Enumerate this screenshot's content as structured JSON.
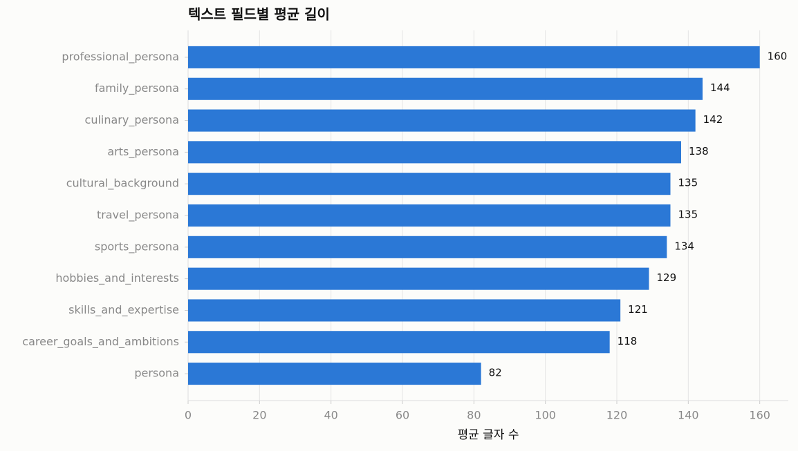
{
  "chart_data": {
    "type": "bar",
    "orientation": "horizontal",
    "title": "텍스트 필드별 평균 길이",
    "xlabel": "평균 글자 수",
    "categories": [
      "professional_persona",
      "family_persona",
      "culinary_persona",
      "arts_persona",
      "cultural_background",
      "travel_persona",
      "sports_persona",
      "hobbies_and_interests",
      "skills_and_expertise",
      "career_goals_and_ambitions",
      "persona"
    ],
    "values": [
      160,
      144,
      142,
      138,
      135,
      135,
      134,
      129,
      121,
      118,
      82
    ],
    "color": "#2b78d6",
    "xlim": [
      0,
      168
    ],
    "xticks": [
      0,
      20,
      40,
      60,
      80,
      100,
      120,
      140,
      160
    ],
    "grid": true
  }
}
